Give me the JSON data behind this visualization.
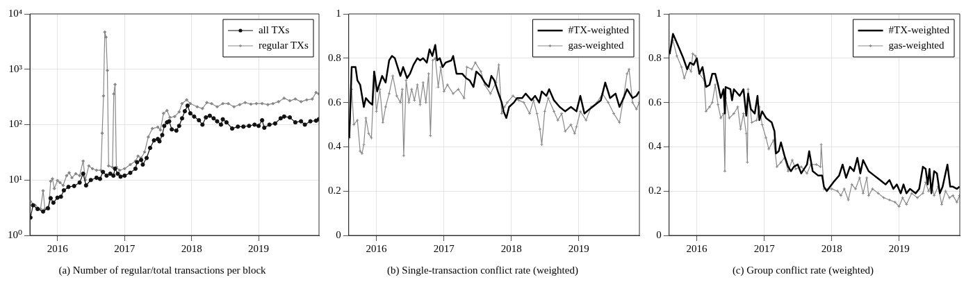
{
  "chart_data": [
    {
      "type": "line",
      "title": "(a) Number of regular/total transactions per block",
      "log": "y",
      "grid": true,
      "legend": "top right",
      "xlim": [
        "2015-08-04",
        "2019-11-26"
      ],
      "xticks": [
        "2016",
        "2017",
        "2018",
        "2019"
      ],
      "ylim": [
        1,
        10000
      ],
      "yticks": [
        {
          "value": 1,
          "label": "10⁰"
        },
        {
          "value": 10,
          "label": "10¹"
        },
        {
          "value": 100,
          "label": "10²"
        },
        {
          "value": 1000,
          "label": "10³"
        },
        {
          "value": 10000,
          "label": "10⁴"
        }
      ],
      "series": [
        {
          "name": "all TXs",
          "color": "#111111",
          "marker": "circle",
          "x": [
            "2015-08-07",
            "2015-08-21",
            "2015-09-15",
            "2015-10-15",
            "2015-11-10",
            "2015-11-25",
            "2015-12-10",
            "2016-01-01",
            "2016-01-20",
            "2016-02-05",
            "2016-03-01",
            "2016-04-01",
            "2016-05-01",
            "2016-05-20",
            "2016-06-05",
            "2016-07-01",
            "2016-08-01",
            "2016-08-20",
            "2016-09-05",
            "2016-09-25",
            "2016-10-15",
            "2016-11-01",
            "2016-11-10",
            "2016-11-25",
            "2016-12-10",
            "2017-01-01",
            "2017-02-01",
            "2017-03-01",
            "2017-03-10",
            "2017-04-01",
            "2017-04-10",
            "2017-05-01",
            "2017-05-20",
            "2017-06-10",
            "2017-07-01",
            "2017-07-10",
            "2017-07-25",
            "2017-08-05",
            "2017-08-20",
            "2017-09-01",
            "2017-09-15",
            "2017-10-10",
            "2017-10-25",
            "2017-11-10",
            "2017-11-25",
            "2017-12-10",
            "2017-12-25",
            "2018-01-15",
            "2018-02-10",
            "2018-03-01",
            "2018-03-20",
            "2018-04-10",
            "2018-05-01",
            "2018-05-20",
            "2018-06-10",
            "2018-06-20",
            "2018-07-10",
            "2018-08-10",
            "2018-09-10",
            "2018-10-10",
            "2018-11-10",
            "2018-12-10",
            "2019-01-01",
            "2019-01-20",
            "2019-02-01",
            "2019-03-01",
            "2019-04-01",
            "2019-05-01",
            "2019-05-20",
            "2019-06-20",
            "2019-07-20",
            "2019-08-20",
            "2019-09-10",
            "2019-10-10",
            "2019-11-10",
            "2019-11-25"
          ],
          "values": [
            2.1,
            3.5,
            3.0,
            2.7,
            3.1,
            4.7,
            3.9,
            4.8,
            5.0,
            6.5,
            7.5,
            7.8,
            9,
            13,
            8,
            10,
            11,
            10.5,
            14,
            12,
            13,
            12,
            16,
            13,
            11.5,
            12,
            13.5,
            16,
            21,
            23,
            19,
            25,
            38,
            52,
            55,
            50,
            65,
            95,
            110,
            115,
            82,
            78,
            95,
            130,
            175,
            220,
            160,
            140,
            120,
            100,
            135,
            145,
            130,
            115,
            100,
            125,
            110,
            85,
            92,
            92,
            95,
            100,
            95,
            120,
            88,
            100,
            105,
            130,
            140,
            135,
            110,
            115,
            100,
            115,
            118,
            125
          ]
        },
        {
          "name": "regular TXs",
          "color": "#888888",
          "marker": "diamond",
          "x": [
            "2015-08-07",
            "2015-09-01",
            "2015-10-01",
            "2015-10-15",
            "2015-10-25",
            "2015-11-15",
            "2015-11-25",
            "2015-12-05",
            "2015-12-15",
            "2016-01-01",
            "2016-01-15",
            "2016-02-01",
            "2016-02-20",
            "2016-03-05",
            "2016-03-20",
            "2016-04-10",
            "2016-05-01",
            "2016-05-20",
            "2016-06-01",
            "2016-06-20",
            "2016-07-10",
            "2016-08-01",
            "2016-08-25",
            "2016-09-01",
            "2016-09-08",
            "2016-09-15",
            "2016-09-22",
            "2016-09-29",
            "2016-10-06",
            "2016-10-27",
            "2016-11-03",
            "2016-11-10",
            "2016-11-17",
            "2016-12-05",
            "2017-01-01",
            "2017-02-01",
            "2017-03-01",
            "2017-03-15",
            "2017-04-01",
            "2017-04-20",
            "2017-05-10",
            "2017-06-01",
            "2017-07-01",
            "2017-07-15",
            "2017-08-01",
            "2017-08-20",
            "2017-09-05",
            "2017-10-01",
            "2017-10-25",
            "2017-11-10",
            "2017-12-05",
            "2017-12-25",
            "2018-02-01",
            "2018-03-01",
            "2018-03-25",
            "2018-04-20",
            "2018-05-20",
            "2018-06-20",
            "2018-07-20",
            "2018-08-20",
            "2018-09-20",
            "2018-10-20",
            "2018-11-20",
            "2018-12-20",
            "2019-01-20",
            "2019-02-20",
            "2019-03-20",
            "2019-04-20",
            "2019-05-20",
            "2019-06-20",
            "2019-07-20",
            "2019-08-20",
            "2019-09-20",
            "2019-10-20",
            "2019-11-10",
            "2019-11-25"
          ],
          "values": [
            4.1,
            3.5,
            3.0,
            6.4,
            3.0,
            3.0,
            9.5,
            10.5,
            7.0,
            9.8,
            9.0,
            8.0,
            12,
            13.5,
            11,
            13,
            12,
            22,
            10,
            18,
            16,
            15,
            15,
            70,
            330,
            4700,
            3800,
            950,
            18,
            17,
            360,
            530,
            17,
            15,
            16,
            19,
            22,
            27,
            25,
            32,
            60,
            85,
            90,
            80,
            160,
            180,
            135,
            140,
            170,
            240,
            280,
            240,
            210,
            195,
            250,
            240,
            210,
            240,
            240,
            210,
            230,
            250,
            235,
            240,
            240,
            230,
            240,
            260,
            300,
            270,
            290,
            260,
            280,
            290,
            380,
            360
          ]
        }
      ]
    },
    {
      "type": "line",
      "title": "(b) Single-transaction conflict rate (weighted)",
      "grid": true,
      "legend": "top right",
      "xlim": [
        "2015-08-04",
        "2019-11-26"
      ],
      "xticks": [
        "2016",
        "2017",
        "2018",
        "2019"
      ],
      "ylim": [
        0,
        1
      ],
      "yticks": [
        0,
        0.2,
        0.4,
        0.6,
        0.8,
        1
      ],
      "series": [
        {
          "name": "#TX-weighted",
          "color": "#000000",
          "marker": "none",
          "x": [
            "2015-08-07",
            "2015-08-20",
            "2015-09-10",
            "2015-09-20",
            "2015-10-05",
            "2015-10-25",
            "2015-11-05",
            "2015-11-25",
            "2015-12-10",
            "2015-12-20",
            "2016-01-05",
            "2016-02-01",
            "2016-02-20",
            "2016-03-10",
            "2016-03-25",
            "2016-04-10",
            "2016-05-10",
            "2016-05-25",
            "2016-06-15",
            "2016-07-01",
            "2016-07-20",
            "2016-08-10",
            "2016-08-25",
            "2016-09-10",
            "2016-09-30",
            "2016-10-15",
            "2016-10-30",
            "2016-11-15",
            "2016-11-25",
            "2016-12-10",
            "2016-12-25",
            "2017-01-10",
            "2017-02-10",
            "2017-02-20",
            "2017-03-10",
            "2017-04-10",
            "2017-05-01",
            "2017-05-20",
            "2017-06-10",
            "2017-06-25",
            "2017-07-20",
            "2017-08-10",
            "2017-09-01",
            "2017-09-15",
            "2017-10-01",
            "2017-10-20",
            "2017-11-10",
            "2017-11-20",
            "2017-12-05",
            "2017-12-20",
            "2018-01-15",
            "2018-02-01",
            "2018-03-01",
            "2018-03-20",
            "2018-04-20",
            "2018-05-10",
            "2018-06-01",
            "2018-06-15",
            "2018-07-10",
            "2018-07-25",
            "2018-08-20",
            "2018-09-20",
            "2018-10-20",
            "2018-11-20",
            "2018-12-20",
            "2019-01-10",
            "2019-02-01",
            "2019-03-01",
            "2019-04-01",
            "2019-05-01",
            "2019-05-25",
            "2019-06-20",
            "2019-07-20",
            "2019-08-10",
            "2019-09-01",
            "2019-09-20",
            "2019-10-20",
            "2019-11-10",
            "2019-11-25"
          ],
          "values": [
            0.44,
            0.76,
            0.76,
            0.7,
            0.68,
            0.58,
            0.62,
            0.6,
            0.59,
            0.74,
            0.65,
            0.72,
            0.69,
            0.79,
            0.81,
            0.8,
            0.72,
            0.76,
            0.71,
            0.73,
            0.77,
            0.8,
            0.79,
            0.8,
            0.78,
            0.84,
            0.81,
            0.86,
            0.79,
            0.8,
            0.76,
            0.78,
            0.79,
            0.81,
            0.73,
            0.73,
            0.71,
            0.7,
            0.67,
            0.74,
            0.72,
            0.69,
            0.67,
            0.72,
            0.7,
            0.65,
            0.6,
            0.56,
            0.53,
            0.58,
            0.6,
            0.62,
            0.62,
            0.64,
            0.61,
            0.63,
            0.6,
            0.65,
            0.63,
            0.66,
            0.61,
            0.58,
            0.56,
            0.58,
            0.56,
            0.63,
            0.55,
            0.57,
            0.59,
            0.61,
            0.69,
            0.62,
            0.64,
            0.58,
            0.62,
            0.66,
            0.62,
            0.63,
            0.65
          ]
        },
        {
          "name": "gas-weighted",
          "color": "#888888",
          "marker": "cross",
          "x": [
            "2015-08-07",
            "2015-08-20",
            "2015-09-01",
            "2015-09-20",
            "2015-10-05",
            "2015-10-15",
            "2015-10-25",
            "2015-11-05",
            "2015-11-20",
            "2015-12-05",
            "2015-12-20",
            "2016-01-01",
            "2016-01-20",
            "2016-02-05",
            "2016-02-20",
            "2016-03-10",
            "2016-03-30",
            "2016-04-20",
            "2016-05-10",
            "2016-05-20",
            "2016-05-28",
            "2016-06-10",
            "2016-06-25",
            "2016-07-10",
            "2016-07-25",
            "2016-08-10",
            "2016-08-25",
            "2016-09-10",
            "2016-09-25",
            "2016-10-10",
            "2016-10-20",
            "2016-11-01",
            "2016-11-15",
            "2016-12-01",
            "2016-12-15",
            "2017-01-01",
            "2017-01-20",
            "2017-02-20",
            "2017-03-20",
            "2017-04-20",
            "2017-05-05",
            "2017-06-01",
            "2017-06-20",
            "2017-07-20",
            "2017-08-10",
            "2017-09-10",
            "2017-10-10",
            "2017-10-25",
            "2017-11-10",
            "2017-11-25",
            "2017-12-10",
            "2018-01-10",
            "2018-02-10",
            "2018-03-10",
            "2018-04-10",
            "2018-05-01",
            "2018-05-20",
            "2018-06-05",
            "2018-06-15",
            "2018-07-01",
            "2018-07-20",
            "2018-08-20",
            "2018-09-10",
            "2018-10-01",
            "2018-10-20",
            "2018-11-20",
            "2018-12-10",
            "2018-12-20",
            "2019-01-10",
            "2019-02-10",
            "2019-03-10",
            "2019-04-10",
            "2019-05-10",
            "2019-06-10",
            "2019-07-10",
            "2019-08-10",
            "2019-09-01",
            "2019-09-20",
            "2019-10-01",
            "2019-10-20",
            "2019-11-10",
            "2019-11-25"
          ],
          "values": [
            0.44,
            0.66,
            0.5,
            0.52,
            0.38,
            0.37,
            0.41,
            0.53,
            0.46,
            0.44,
            0.72,
            0.56,
            0.66,
            0.51,
            0.58,
            0.64,
            0.72,
            0.63,
            0.6,
            0.66,
            0.36,
            0.7,
            0.6,
            0.66,
            0.61,
            0.68,
            0.59,
            0.69,
            0.6,
            0.73,
            0.45,
            0.79,
            0.8,
            0.67,
            0.76,
            0.65,
            0.68,
            0.64,
            0.66,
            0.62,
            0.76,
            0.75,
            0.78,
            0.74,
            0.68,
            0.64,
            0.69,
            0.77,
            0.55,
            0.58,
            0.6,
            0.63,
            0.61,
            0.6,
            0.55,
            0.61,
            0.55,
            0.48,
            0.41,
            0.56,
            0.62,
            0.56,
            0.52,
            0.55,
            0.47,
            0.5,
            0.46,
            0.49,
            0.56,
            0.52,
            0.58,
            0.6,
            0.64,
            0.6,
            0.55,
            0.51,
            0.62,
            0.73,
            0.75,
            0.6,
            0.57,
            0.6
          ]
        }
      ]
    },
    {
      "type": "line",
      "title": "(c) Group conflict rate (weighted)",
      "grid": true,
      "legend": "top right",
      "xlim": [
        "2015-08-04",
        "2019-11-26"
      ],
      "xticks": [
        "2016",
        "2017",
        "2018",
        "2019"
      ],
      "ylim": [
        0,
        1
      ],
      "yticks": [
        0,
        0.2,
        0.4,
        0.6,
        0.8,
        1
      ],
      "series": [
        {
          "name": "#TX-weighted",
          "color": "#000000",
          "marker": "none",
          "x": [
            "2015-08-07",
            "2015-08-25",
            "2015-09-20",
            "2015-10-20",
            "2015-11-10",
            "2015-11-25",
            "2015-12-15",
            "2016-01-01",
            "2016-01-15",
            "2016-02-01",
            "2016-02-20",
            "2016-03-10",
            "2016-03-25",
            "2016-04-10",
            "2016-04-25",
            "2016-05-10",
            "2016-05-25",
            "2016-06-01",
            "2016-06-05",
            "2016-07-01",
            "2016-07-10",
            "2016-07-20",
            "2016-08-20",
            "2016-09-10",
            "2016-09-25",
            "2016-10-05",
            "2016-10-20",
            "2016-11-10",
            "2016-11-25",
            "2016-12-05",
            "2016-12-20",
            "2017-01-10",
            "2017-02-10",
            "2017-02-25",
            "2017-03-05",
            "2017-03-20",
            "2017-04-01",
            "2017-04-20",
            "2017-05-10",
            "2017-05-25",
            "2017-06-10",
            "2017-07-01",
            "2017-07-20",
            "2017-08-20",
            "2017-09-01",
            "2017-09-20",
            "2017-10-20",
            "2017-11-10",
            "2017-11-20",
            "2017-12-05",
            "2018-01-10",
            "2018-02-10",
            "2018-03-01",
            "2018-03-20",
            "2018-04-10",
            "2018-05-01",
            "2018-05-20",
            "2018-06-05",
            "2018-06-20",
            "2018-07-20",
            "2018-08-20",
            "2018-09-20",
            "2018-10-20",
            "2018-11-10",
            "2018-12-01",
            "2018-12-20",
            "2019-01-10",
            "2019-01-25",
            "2019-02-10",
            "2019-03-01",
            "2019-04-01",
            "2019-04-20",
            "2019-05-10",
            "2019-05-25",
            "2019-06-05",
            "2019-06-15",
            "2019-06-25",
            "2019-07-10",
            "2019-07-25",
            "2019-08-10",
            "2019-08-25",
            "2019-09-20",
            "2019-10-05",
            "2019-10-20",
            "2019-11-10",
            "2019-11-25"
          ],
          "values": [
            0.82,
            0.91,
            0.86,
            0.8,
            0.75,
            0.78,
            0.77,
            0.8,
            0.73,
            0.76,
            0.67,
            0.68,
            0.73,
            0.73,
            0.68,
            0.62,
            0.66,
            0.55,
            0.67,
            0.66,
            0.61,
            0.66,
            0.63,
            0.66,
            0.54,
            0.64,
            0.57,
            0.55,
            0.63,
            0.52,
            0.56,
            0.53,
            0.51,
            0.47,
            0.37,
            0.38,
            0.42,
            0.36,
            0.31,
            0.29,
            0.31,
            0.32,
            0.28,
            0.32,
            0.38,
            0.29,
            0.27,
            0.27,
            0.22,
            0.2,
            0.24,
            0.27,
            0.32,
            0.26,
            0.31,
            0.29,
            0.35,
            0.28,
            0.34,
            0.29,
            0.27,
            0.25,
            0.23,
            0.25,
            0.21,
            0.23,
            0.19,
            0.23,
            0.19,
            0.21,
            0.19,
            0.21,
            0.31,
            0.3,
            0.23,
            0.3,
            0.19,
            0.29,
            0.28,
            0.19,
            0.22,
            0.32,
            0.22,
            0.22,
            0.21,
            0.22
          ]
        },
        {
          "name": "gas-weighted",
          "color": "#888888",
          "marker": "cross",
          "x": [
            "2015-08-07",
            "2015-08-25",
            "2015-09-15",
            "2015-10-10",
            "2015-10-25",
            "2015-11-15",
            "2015-12-01",
            "2015-12-10",
            "2015-12-25",
            "2016-01-15",
            "2016-02-10",
            "2016-02-20",
            "2016-03-10",
            "2016-03-25",
            "2016-04-10",
            "2016-04-25",
            "2016-05-10",
            "2016-05-25",
            "2016-06-01",
            "2016-06-05",
            "2016-06-25",
            "2016-07-20",
            "2016-08-10",
            "2016-08-25",
            "2016-09-10",
            "2016-09-25",
            "2016-10-01",
            "2016-10-05",
            "2016-10-25",
            "2016-11-20",
            "2016-12-05",
            "2016-12-20",
            "2017-01-10",
            "2017-01-25",
            "2017-02-20",
            "2017-03-10",
            "2017-04-01",
            "2017-04-20",
            "2017-05-10",
            "2017-06-01",
            "2017-06-20",
            "2017-07-20",
            "2017-08-20",
            "2017-09-10",
            "2017-10-10",
            "2017-11-01",
            "2017-11-05",
            "2017-11-20",
            "2018-01-01",
            "2018-02-01",
            "2018-02-20",
            "2018-03-10",
            "2018-04-01",
            "2018-04-20",
            "2018-05-10",
            "2018-06-01",
            "2018-06-20",
            "2018-07-10",
            "2018-07-20",
            "2018-08-10",
            "2018-09-10",
            "2018-10-10",
            "2018-11-10",
            "2018-12-10",
            "2019-01-01",
            "2019-01-20",
            "2019-02-10",
            "2019-03-10",
            "2019-04-10",
            "2019-05-10",
            "2019-05-25",
            "2019-06-10",
            "2019-06-25",
            "2019-07-10",
            "2019-08-01",
            "2019-08-20",
            "2019-09-10",
            "2019-10-01",
            "2019-10-20",
            "2019-11-10",
            "2019-11-25"
          ],
          "values": [
            0.82,
            0.88,
            0.81,
            0.76,
            0.71,
            0.76,
            0.74,
            0.82,
            0.81,
            0.73,
            0.7,
            0.56,
            0.58,
            0.6,
            0.68,
            0.59,
            0.53,
            0.55,
            0.29,
            0.62,
            0.53,
            0.55,
            0.58,
            0.48,
            0.55,
            0.46,
            0.33,
            0.66,
            0.51,
            0.52,
            0.58,
            0.5,
            0.44,
            0.39,
            0.43,
            0.31,
            0.33,
            0.35,
            0.29,
            0.34,
            0.3,
            0.31,
            0.28,
            0.32,
            0.32,
            0.31,
            0.41,
            0.21,
            0.21,
            0.2,
            0.18,
            0.21,
            0.16,
            0.23,
            0.21,
            0.26,
            0.19,
            0.26,
            0.18,
            0.21,
            0.19,
            0.17,
            0.16,
            0.15,
            0.13,
            0.17,
            0.14,
            0.19,
            0.17,
            0.19,
            0.24,
            0.2,
            0.23,
            0.18,
            0.22,
            0.14,
            0.2,
            0.17,
            0.18,
            0.15,
            0.18
          ]
        }
      ]
    }
  ]
}
